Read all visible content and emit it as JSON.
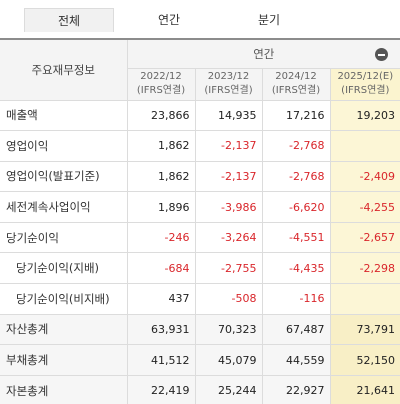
{
  "tabs": [
    "전체",
    "연간",
    "분기"
  ],
  "table": {
    "row_header": "주요재무정보",
    "group_header": "연간",
    "columns": [
      {
        "period": "2022/12",
        "basis": "(IFRS연결)"
      },
      {
        "period": "2023/12",
        "basis": "(IFRS연결)"
      },
      {
        "period": "2024/12",
        "basis": "(IFRS연결)"
      },
      {
        "period": "2025/12(E)",
        "basis": "(IFRS연결)"
      }
    ],
    "rows": [
      {
        "label": "매출액",
        "values": [
          "23,866",
          "14,935",
          "17,216",
          "19,203"
        ]
      },
      {
        "label": "영업이익",
        "values": [
          "1,862",
          "-2,137",
          "-2,768",
          ""
        ]
      },
      {
        "label": "영업이익(발표기준)",
        "values": [
          "1,862",
          "-2,137",
          "-2,768",
          "-2,409"
        ]
      },
      {
        "label": "세전계속사업이익",
        "values": [
          "1,896",
          "-3,986",
          "-6,620",
          "-4,255"
        ]
      },
      {
        "label": "당기순이익",
        "values": [
          "-246",
          "-3,264",
          "-4,551",
          "-2,657"
        ]
      },
      {
        "label": "당기순이익(지배)",
        "values": [
          "-684",
          "-2,755",
          "-4,435",
          "-2,298"
        ]
      },
      {
        "label": "당기순이익(비지배)",
        "values": [
          "437",
          "-508",
          "-116",
          ""
        ]
      },
      {
        "label": "자산총계",
        "values": [
          "63,931",
          "70,323",
          "67,487",
          "73,791"
        ]
      },
      {
        "label": "부채총계",
        "values": [
          "41,512",
          "45,079",
          "44,559",
          "52,150"
        ]
      },
      {
        "label": "자본총계",
        "values": [
          "22,419",
          "25,244",
          "22,927",
          "21,641"
        ]
      }
    ]
  },
  "colors": {
    "negative": "#d9262b",
    "estimate_bg": "#fcf6d6"
  },
  "icons": {
    "collapse": "minus-circle-icon"
  }
}
